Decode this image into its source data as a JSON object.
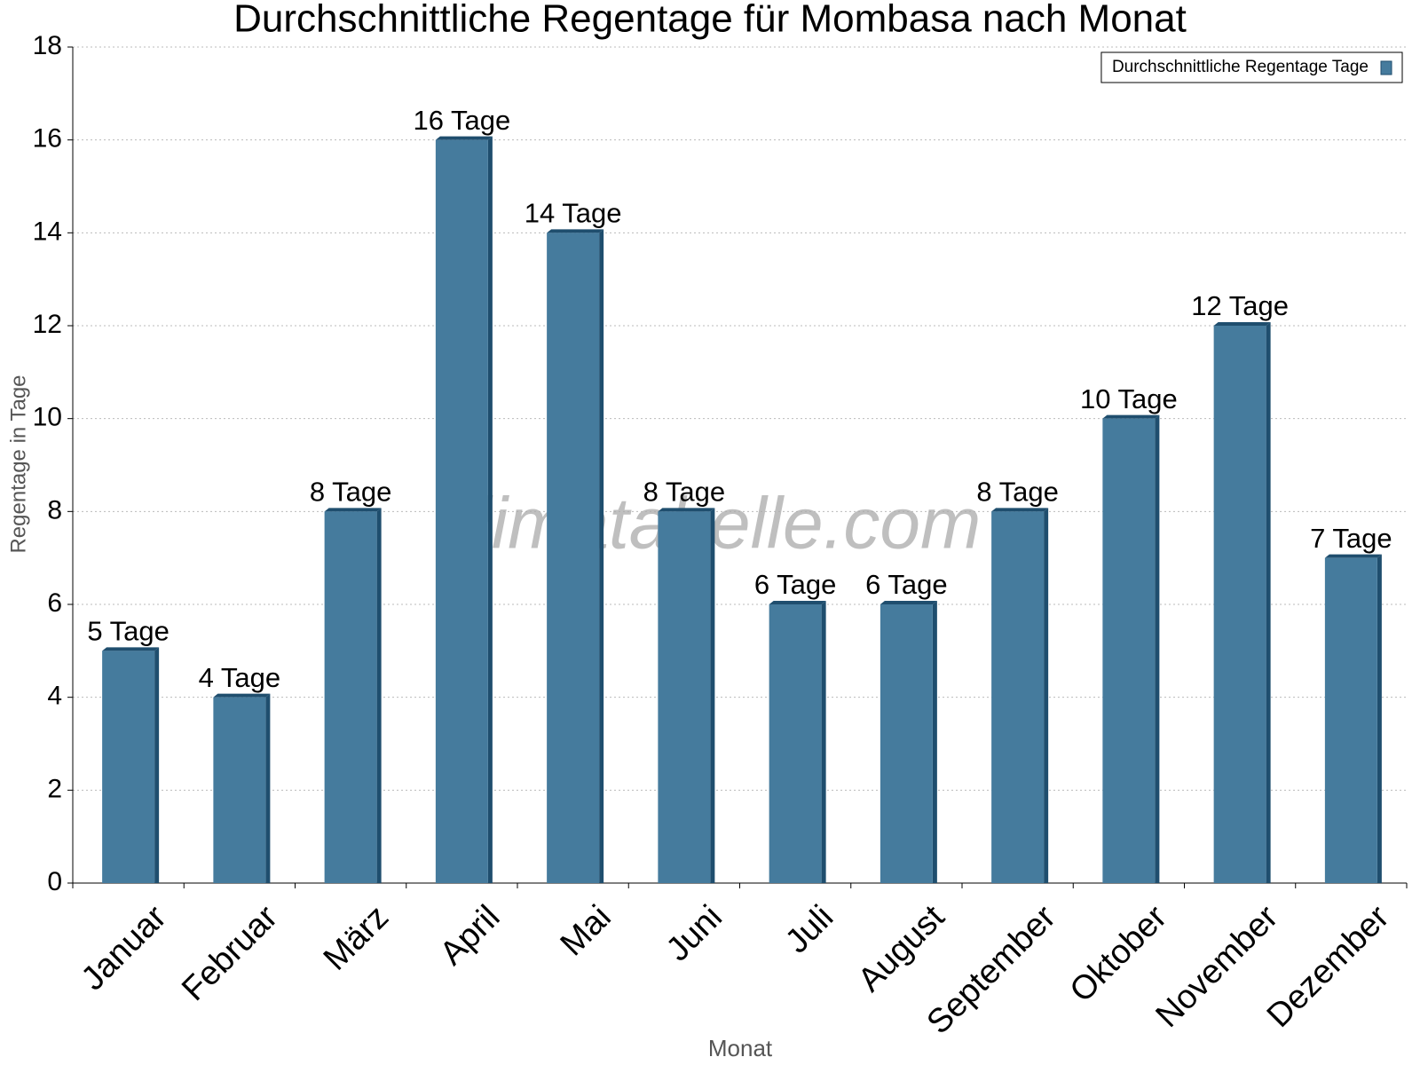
{
  "chart_data": {
    "type": "bar",
    "title": "Durchschnittliche Regentage für Mombasa nach Monat",
    "x_label": "Monat",
    "y_label": "Regentage in Tage",
    "watermark": "klimatabelle.com",
    "categories": [
      "Januar",
      "Februar",
      "März",
      "April",
      "Mai",
      "Juni",
      "Juli",
      "August",
      "September",
      "Oktober",
      "November",
      "Dezember"
    ],
    "series": [
      {
        "name": "Durchschnittliche Regentage Tage",
        "color": "#457b9d",
        "values": [
          5,
          4,
          8,
          16,
          14,
          8,
          6,
          6,
          8,
          10,
          12,
          7
        ],
        "value_labels": [
          "5 Tage",
          "4 Tage",
          "8 Tage",
          "16 Tage",
          "14 Tage",
          "8 Tage",
          "6 Tage",
          "6 Tage",
          "8 Tage",
          "10 Tage",
          "12 Tage",
          "7 Tage"
        ]
      }
    ],
    "ylim": [
      0,
      18
    ],
    "yticks": [
      0,
      2,
      4,
      6,
      8,
      10,
      12,
      14,
      16,
      18
    ],
    "grid": true,
    "legend": "top-right"
  }
}
